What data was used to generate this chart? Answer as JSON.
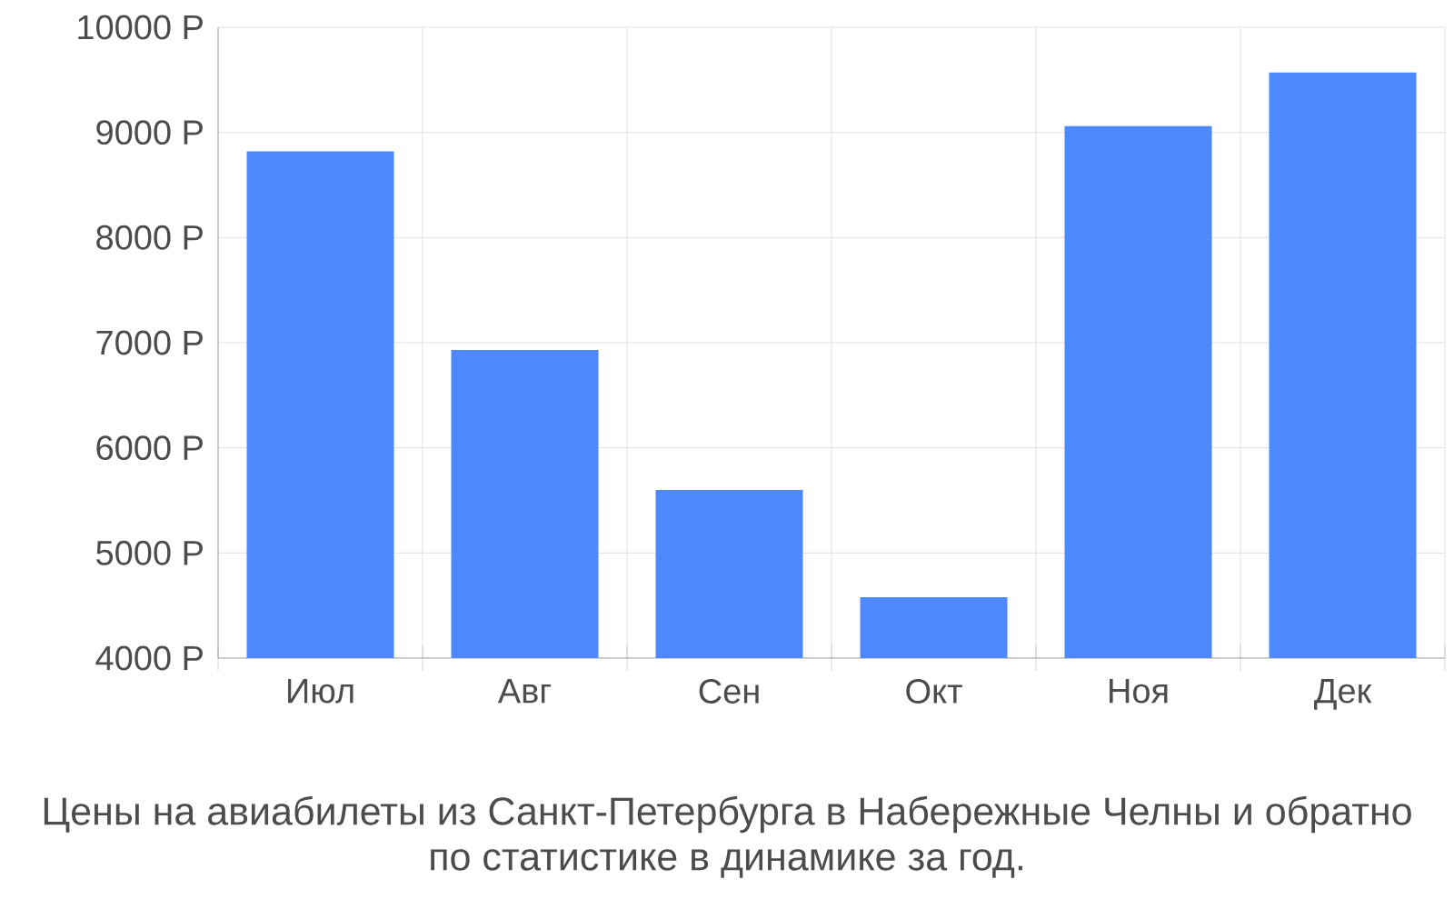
{
  "chart_data": {
    "type": "bar",
    "title": "Цены на авиабилеты из Санкт-Петербурга в Набережные Челны и обратно",
    "subtitle": "по статистике в динамике за год.",
    "categories": [
      "Июл",
      "Авг",
      "Сен",
      "Окт",
      "Ноя",
      "Дек"
    ],
    "values": [
      8820,
      6930,
      5600,
      4580,
      9060,
      9570
    ],
    "color": "#4d88ff",
    "ylim": [
      4000,
      10000
    ],
    "yticks": [
      {
        "value": 4000,
        "label": "4000 Р"
      },
      {
        "value": 5000,
        "label": "5000 Р"
      },
      {
        "value": 6000,
        "label": "6000 Р"
      },
      {
        "value": 7000,
        "label": "7000 Р"
      },
      {
        "value": 8000,
        "label": "8000 Р"
      },
      {
        "value": 9000,
        "label": "9000 Р"
      },
      {
        "value": 10000,
        "label": "10000 Р"
      }
    ],
    "grid": true
  }
}
